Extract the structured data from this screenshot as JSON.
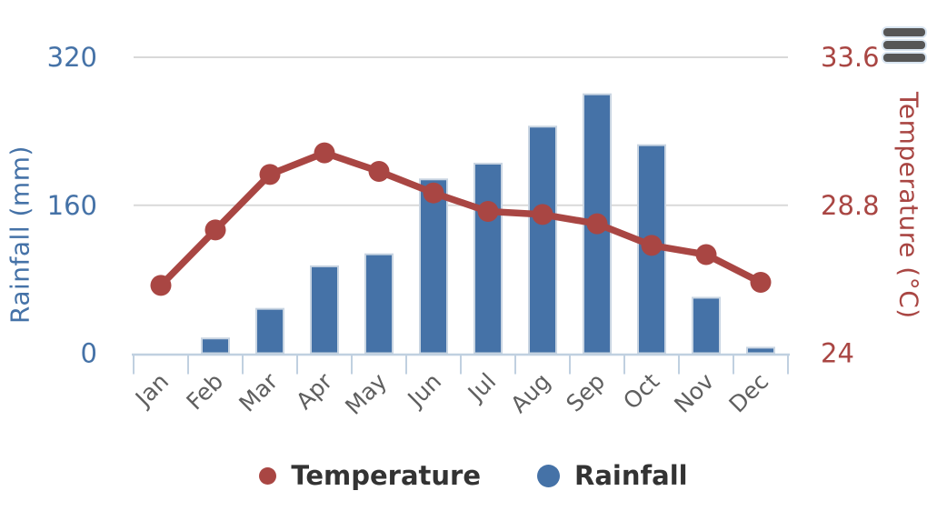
{
  "chart_data": {
    "type": "combo",
    "categories": [
      "Jan",
      "Feb",
      "Mar",
      "Apr",
      "May",
      "Jun",
      "Jul",
      "Aug",
      "Sep",
      "Oct",
      "Nov",
      "Dec"
    ],
    "series": [
      {
        "name": "Temperature",
        "type": "line",
        "axis": "right",
        "color": "#A94643",
        "values": [
          26.2,
          28.0,
          29.8,
          30.5,
          29.9,
          29.2,
          28.6,
          28.5,
          28.2,
          27.5,
          27.2,
          26.3
        ]
      },
      {
        "name": "Rainfall",
        "type": "bar",
        "axis": "left",
        "color": "#4572A7",
        "values": [
          0,
          16,
          48,
          94,
          107,
          188,
          205,
          245,
          280,
          225,
          60,
          6
        ]
      }
    ],
    "left_axis": {
      "title": "Rainfall (mm)",
      "ticks": [
        0,
        160,
        320
      ],
      "range": [
        0,
        320
      ],
      "color": "#4572A7"
    },
    "right_axis": {
      "title": "Temperature (°C)",
      "ticks": [
        24,
        28.8,
        33.6
      ],
      "range": [
        24,
        33.6
      ],
      "color": "#A94643"
    },
    "grid": true,
    "legend_position": "bottom",
    "xlabel": "",
    "ylabel": "Rainfall (mm)",
    "title": ""
  },
  "legend": {
    "items": [
      {
        "label": "Temperature",
        "color": "#A94643"
      },
      {
        "label": "Rainfall",
        "color": "#4572A7"
      }
    ]
  },
  "toolbar": {
    "menu_icon": "hamburger-icon"
  },
  "colors": {
    "temperature": "#A94643",
    "rainfall": "#4572A7",
    "gridline": "#D9D9D9",
    "axis_line": "#C0D0E0",
    "x_label": "#5F5F5F",
    "legend_text": "#333333",
    "menu_icon": "#565656"
  }
}
